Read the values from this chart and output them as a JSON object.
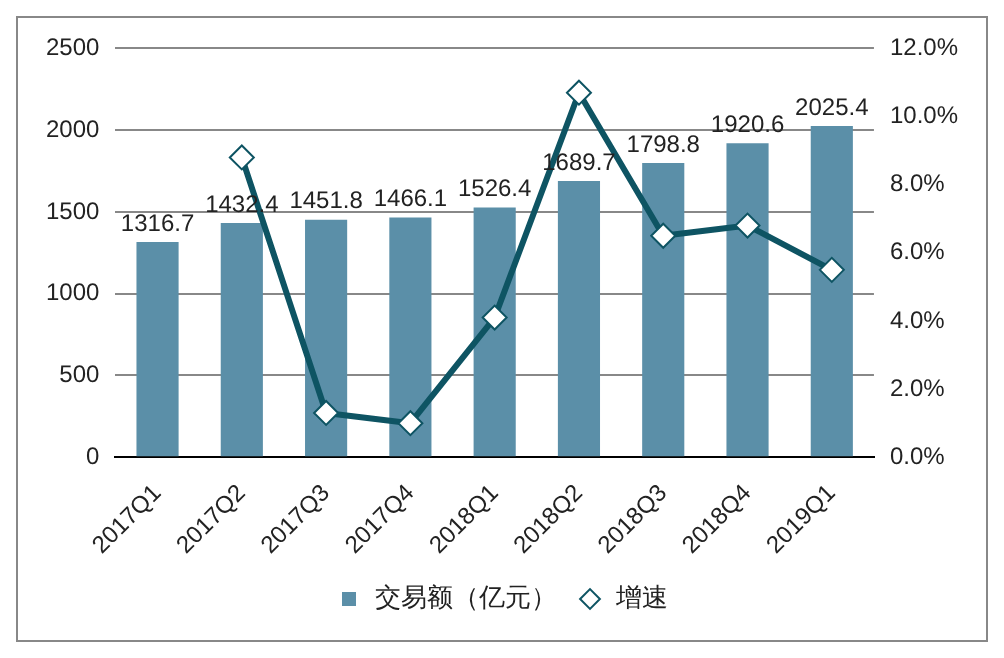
{
  "chart_data": {
    "type": "bar",
    "categories": [
      "2017Q1",
      "2017Q2",
      "2017Q3",
      "2017Q4",
      "2018Q1",
      "2018Q2",
      "2018Q3",
      "2018Q4",
      "2019Q1"
    ],
    "series": [
      {
        "name": "交易额（亿元）",
        "color": "#5b8fa8",
        "values": [
          1316.7,
          1432.4,
          1451.8,
          1466.1,
          1526.4,
          1689.7,
          1798.8,
          1920.6,
          2025.4
        ],
        "value_labels": [
          "1316.7",
          "1432.4",
          "1451.8",
          "1466.1",
          "1526.4",
          "1689.7",
          "1798.8",
          "1920.6",
          "2025.4"
        ]
      },
      {
        "name": "增速",
        "type": "line",
        "axis": "y2",
        "color": "#0e5463",
        "marker": "diamond",
        "values": [
          null,
          8.8,
          1.3,
          1.0,
          4.1,
          10.7,
          6.5,
          6.8,
          5.5
        ]
      }
    ],
    "ylim": [
      0,
      2500
    ],
    "yticks": [
      0,
      500,
      1000,
      1500,
      2000,
      2500
    ],
    "y2lim": [
      0,
      12
    ],
    "y2ticks": [
      {
        "value": 0,
        "label": "0.0%"
      },
      {
        "value": 2,
        "label": "2.0%"
      },
      {
        "value": 4,
        "label": "4.0%"
      },
      {
        "value": 6,
        "label": "6.0%"
      },
      {
        "value": 8,
        "label": "8.0%"
      },
      {
        "value": 10,
        "label": "10.0%"
      },
      {
        "value": 12,
        "label": "12.0%"
      }
    ],
    "grid": "y",
    "legend": "bottom"
  }
}
